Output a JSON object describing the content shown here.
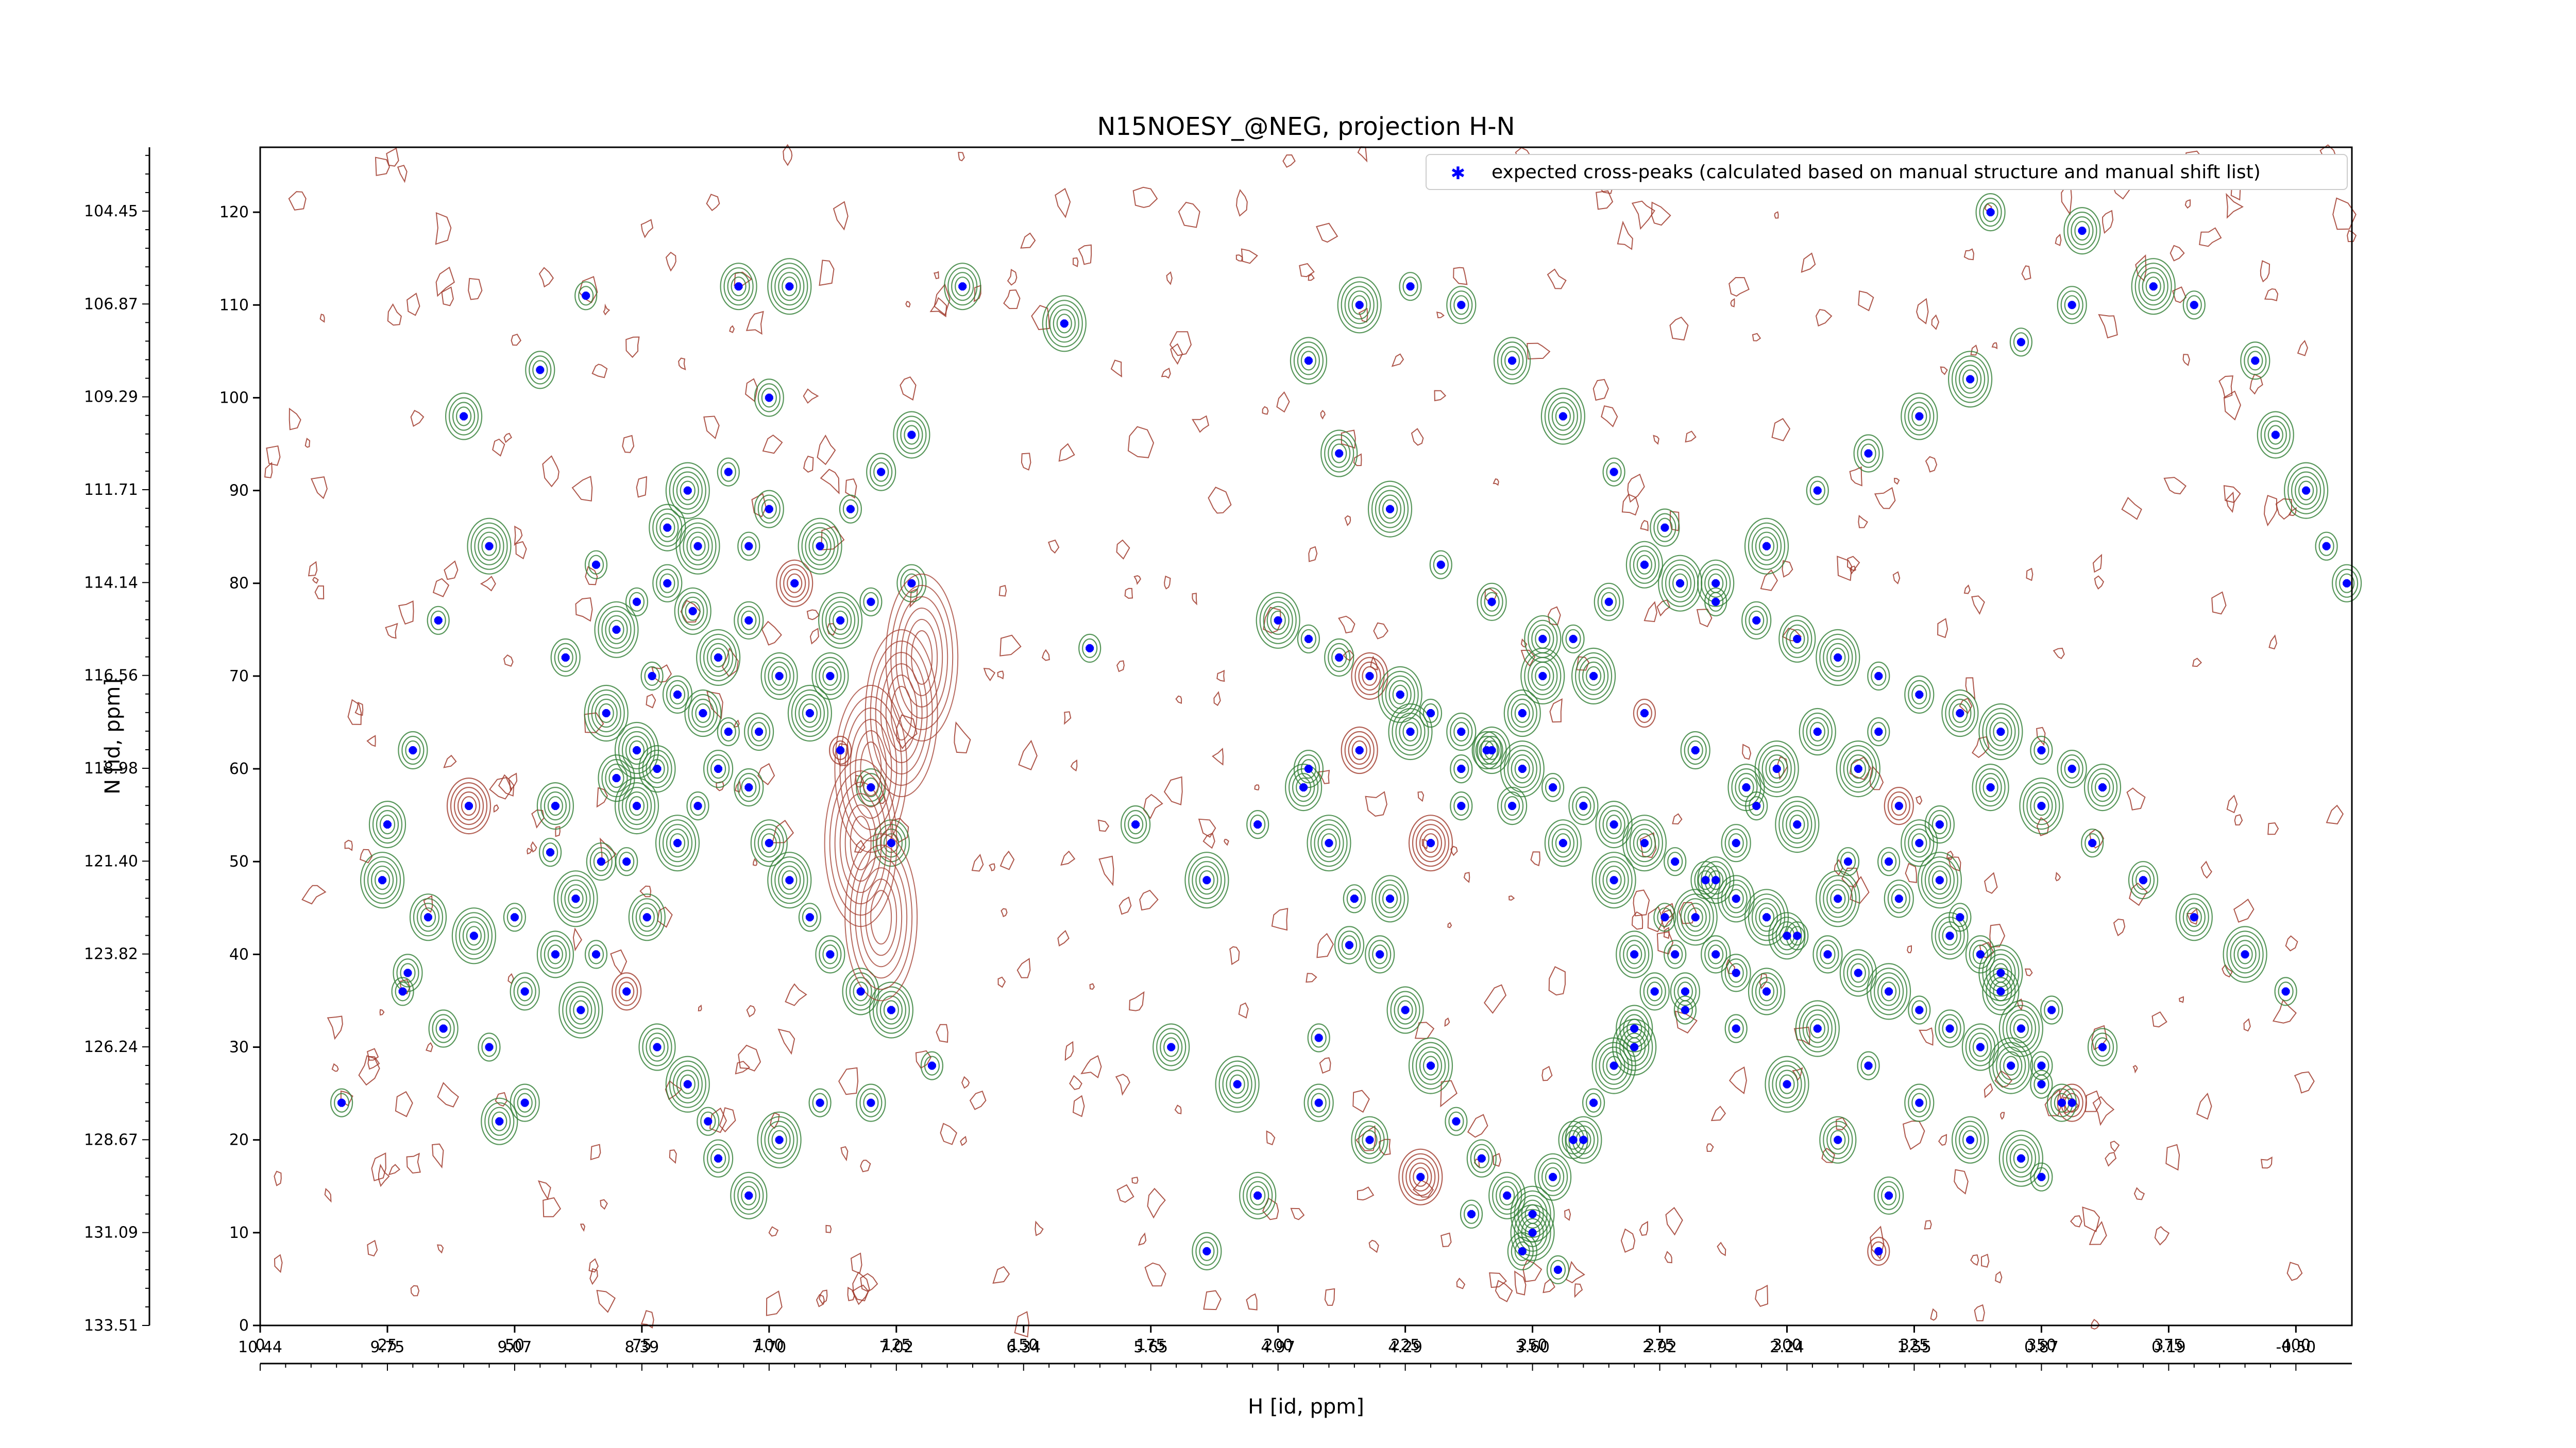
{
  "chart_data": {
    "type": "scatter",
    "title": "N15NOESY_@NEG, projection H-N",
    "xlabel": "H [id, ppm]",
    "ylabel": "N [id, ppm]",
    "xlim": [
      0,
      411
    ],
    "ylim": [
      0,
      127
    ],
    "x_index_ticks": [
      "0",
      "25",
      "50",
      "75",
      "100",
      "125",
      "150",
      "175",
      "200",
      "225",
      "250",
      "275",
      "300",
      "325",
      "350",
      "375",
      "400"
    ],
    "y_index_ticks": [
      "0",
      "10",
      "20",
      "30",
      "40",
      "50",
      "60",
      "70",
      "80",
      "90",
      "100",
      "110",
      "120"
    ],
    "x_ppm_ticks": [
      "10.44",
      "9.75",
      "9.07",
      "8.39",
      "7.70",
      "7.02",
      "6.34",
      "5.65",
      "4.97",
      "4.29",
      "3.60",
      "2.92",
      "2.24",
      "1.55",
      "0.87",
      "0.19",
      "-0.50"
    ],
    "y_ppm_ticks": [
      "133.51",
      "131.09",
      "128.67",
      "126.24",
      "123.82",
      "121.40",
      "118.98",
      "116.56",
      "114.14",
      "111.71",
      "109.29",
      "106.87",
      "104.45"
    ],
    "legend": {
      "position": "top-right",
      "entries": [
        "expected cross-peaks (calculated based on manual structure and manual shift list)"
      ]
    },
    "colors": {
      "expected": "#0000ff",
      "positive_contour": "#2e7d32",
      "negative_contour": "#a0392b"
    },
    "series": [
      {
        "name": "expected cross-peaks (calculated based on manual structure and manual shift list)",
        "points": [
          [
            16,
            24
          ],
          [
            29,
            38
          ],
          [
            33,
            44
          ],
          [
            42,
            42
          ],
          [
            45,
            30
          ],
          [
            52,
            24
          ],
          [
            47,
            22
          ],
          [
            41,
            56
          ],
          [
            57,
            51
          ],
          [
            67,
            50
          ],
          [
            70,
            59
          ],
          [
            74,
            62
          ],
          [
            77,
            70
          ],
          [
            82,
            68
          ],
          [
            87,
            66
          ],
          [
            70,
            75
          ],
          [
            74,
            78
          ],
          [
            80,
            80
          ],
          [
            85,
            77
          ],
          [
            90,
            72
          ],
          [
            92,
            64
          ],
          [
            96,
            58
          ],
          [
            100,
            52
          ],
          [
            104,
            48
          ],
          [
            108,
            44
          ],
          [
            112,
            40
          ],
          [
            118,
            36
          ],
          [
            124,
            34
          ],
          [
            132,
            28
          ],
          [
            96,
            76
          ],
          [
            105,
            80
          ],
          [
            110,
            84
          ],
          [
            116,
            88
          ],
          [
            122,
            92
          ],
          [
            128,
            96
          ],
          [
            84,
            90
          ],
          [
            92,
            92
          ],
          [
            100,
            100
          ],
          [
            94,
            112
          ],
          [
            104,
            112
          ],
          [
            64,
            111
          ],
          [
            55,
            103
          ],
          [
            40,
            98
          ],
          [
            45,
            84
          ],
          [
            35,
            76
          ],
          [
            30,
            62
          ],
          [
            25,
            54
          ],
          [
            24,
            48
          ],
          [
            28,
            36
          ],
          [
            36,
            32
          ],
          [
            58,
            56
          ],
          [
            62,
            46
          ],
          [
            66,
            40
          ],
          [
            72,
            36
          ],
          [
            78,
            30
          ],
          [
            84,
            26
          ],
          [
            88,
            22
          ],
          [
            90,
            18
          ],
          [
            96,
            14
          ],
          [
            102,
            20
          ],
          [
            110,
            24
          ],
          [
            120,
            24
          ],
          [
            58,
            40
          ],
          [
            63,
            34
          ],
          [
            50,
            44
          ],
          [
            52,
            36
          ],
          [
            76,
            44
          ],
          [
            82,
            52
          ],
          [
            86,
            56
          ],
          [
            90,
            60
          ],
          [
            78,
            60
          ],
          [
            74,
            56
          ],
          [
            72,
            50
          ],
          [
            98,
            64
          ],
          [
            102,
            70
          ],
          [
            108,
            66
          ],
          [
            114,
            62
          ],
          [
            120,
            58
          ],
          [
            124,
            52
          ],
          [
            68,
            66
          ],
          [
            66,
            82
          ],
          [
            60,
            72
          ],
          [
            80,
            86
          ],
          [
            86,
            84
          ],
          [
            96,
            84
          ],
          [
            100,
            88
          ],
          [
            112,
            70
          ],
          [
            114,
            76
          ],
          [
            120,
            78
          ],
          [
            128,
            80
          ],
          [
            138,
            112
          ],
          [
            158,
            108
          ],
          [
            163,
            73
          ],
          [
            172,
            54
          ],
          [
            179,
            30
          ],
          [
            192,
            26
          ],
          [
            208,
            31
          ],
          [
            214,
            41
          ],
          [
            222,
            46
          ],
          [
            230,
            52
          ],
          [
            236,
            56
          ],
          [
            241,
            62
          ],
          [
            248,
            66
          ],
          [
            252,
            70
          ],
          [
            258,
            74
          ],
          [
            265,
            78
          ],
          [
            272,
            82
          ],
          [
            279,
            80
          ],
          [
            286,
            78
          ],
          [
            294,
            76
          ],
          [
            302,
            74
          ],
          [
            310,
            72
          ],
          [
            318,
            70
          ],
          [
            326,
            68
          ],
          [
            334,
            66
          ],
          [
            342,
            64
          ],
          [
            350,
            62
          ],
          [
            356,
            60
          ],
          [
            362,
            58
          ],
          [
            200,
            76
          ],
          [
            206,
            74
          ],
          [
            212,
            72
          ],
          [
            218,
            70
          ],
          [
            224,
            68
          ],
          [
            230,
            66
          ],
          [
            236,
            64
          ],
          [
            242,
            62
          ],
          [
            248,
            60
          ],
          [
            254,
            58
          ],
          [
            260,
            56
          ],
          [
            266,
            54
          ],
          [
            272,
            52
          ],
          [
            278,
            50
          ],
          [
            284,
            48
          ],
          [
            290,
            46
          ],
          [
            296,
            44
          ],
          [
            302,
            42
          ],
          [
            308,
            40
          ],
          [
            314,
            38
          ],
          [
            320,
            36
          ],
          [
            326,
            34
          ],
          [
            332,
            32
          ],
          [
            338,
            30
          ],
          [
            344,
            28
          ],
          [
            350,
            26
          ],
          [
            356,
            24
          ],
          [
            206,
            104
          ],
          [
            216,
            110
          ],
          [
            226,
            112
          ],
          [
            236,
            110
          ],
          [
            246,
            104
          ],
          [
            256,
            98
          ],
          [
            266,
            92
          ],
          [
            276,
            86
          ],
          [
            286,
            80
          ],
          [
            296,
            84
          ],
          [
            306,
            90
          ],
          [
            316,
            94
          ],
          [
            326,
            98
          ],
          [
            336,
            102
          ],
          [
            346,
            106
          ],
          [
            356,
            110
          ],
          [
            212,
            94
          ],
          [
            222,
            88
          ],
          [
            232,
            82
          ],
          [
            242,
            78
          ],
          [
            252,
            74
          ],
          [
            262,
            70
          ],
          [
            272,
            66
          ],
          [
            282,
            62
          ],
          [
            292,
            58
          ],
          [
            302,
            54
          ],
          [
            312,
            50
          ],
          [
            322,
            46
          ],
          [
            332,
            42
          ],
          [
            342,
            38
          ],
          [
            352,
            34
          ],
          [
            362,
            30
          ],
          [
            205,
            58
          ],
          [
            210,
            52
          ],
          [
            215,
            46
          ],
          [
            220,
            40
          ],
          [
            225,
            34
          ],
          [
            230,
            28
          ],
          [
            235,
            22
          ],
          [
            240,
            18
          ],
          [
            245,
            14
          ],
          [
            250,
            10
          ],
          [
            255,
            6
          ],
          [
            208,
            24
          ],
          [
            218,
            20
          ],
          [
            228,
            16
          ],
          [
            238,
            12
          ],
          [
            248,
            8
          ],
          [
            260,
            20
          ],
          [
            270,
            30
          ],
          [
            280,
            34
          ],
          [
            290,
            38
          ],
          [
            300,
            42
          ],
          [
            310,
            46
          ],
          [
            320,
            50
          ],
          [
            330,
            54
          ],
          [
            340,
            58
          ],
          [
            350,
            56
          ],
          [
            360,
            52
          ],
          [
            370,
            48
          ],
          [
            380,
            44
          ],
          [
            390,
            40
          ],
          [
            398,
            36
          ],
          [
            186,
            8
          ],
          [
            196,
            14
          ],
          [
            186,
            48
          ],
          [
            196,
            54
          ],
          [
            206,
            60
          ],
          [
            216,
            62
          ],
          [
            226,
            64
          ],
          [
            236,
            60
          ],
          [
            246,
            56
          ],
          [
            256,
            52
          ],
          [
            266,
            48
          ],
          [
            276,
            44
          ],
          [
            286,
            40
          ],
          [
            296,
            36
          ],
          [
            306,
            32
          ],
          [
            316,
            28
          ],
          [
            326,
            24
          ],
          [
            336,
            20
          ],
          [
            346,
            18
          ],
          [
            350,
            16
          ],
          [
            320,
            14
          ],
          [
            310,
            20
          ],
          [
            300,
            26
          ],
          [
            290,
            32
          ],
          [
            280,
            36
          ],
          [
            270,
            40
          ],
          [
            314,
            60
          ],
          [
            318,
            64
          ],
          [
            322,
            56
          ],
          [
            326,
            52
          ],
          [
            330,
            48
          ],
          [
            334,
            44
          ],
          [
            338,
            40
          ],
          [
            342,
            36
          ],
          [
            346,
            32
          ],
          [
            350,
            28
          ],
          [
            354,
            24
          ],
          [
            306,
            64
          ],
          [
            298,
            60
          ],
          [
            294,
            56
          ],
          [
            290,
            52
          ],
          [
            286,
            48
          ],
          [
            282,
            44
          ],
          [
            278,
            40
          ],
          [
            274,
            36
          ],
          [
            270,
            32
          ],
          [
            266,
            28
          ],
          [
            262,
            24
          ],
          [
            258,
            20
          ],
          [
            254,
            16
          ],
          [
            250,
            12
          ],
          [
            318,
            8
          ],
          [
            340,
            120
          ],
          [
            358,
            118
          ],
          [
            372,
            112
          ],
          [
            380,
            110
          ],
          [
            392,
            104
          ],
          [
            396,
            96
          ],
          [
            402,
            90
          ],
          [
            406,
            84
          ],
          [
            410,
            80
          ]
        ]
      }
    ]
  }
}
